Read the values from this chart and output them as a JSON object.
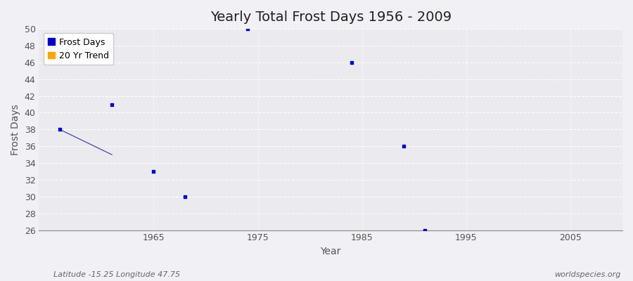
{
  "title": "Yearly Total Frost Days 1956 - 2009",
  "xlabel": "Year",
  "ylabel": "Frost Days",
  "frost_years": [
    1956,
    1961,
    1965,
    1968,
    1974,
    1984,
    1989,
    1991
  ],
  "frost_values": [
    38,
    41,
    33,
    30,
    50,
    46,
    36,
    26
  ],
  "trend_years": [
    1956,
    1961
  ],
  "trend_values": [
    38,
    35
  ],
  "xlim": [
    1954,
    2010
  ],
  "ylim": [
    26,
    50
  ],
  "yticks": [
    26,
    28,
    30,
    32,
    34,
    36,
    38,
    40,
    42,
    44,
    46,
    48,
    50
  ],
  "xticks": [
    1965,
    1975,
    1985,
    1995,
    2005
  ],
  "scatter_color": "#0000cc",
  "trend_color": "#3333aa",
  "trend_legend_color": "#ffa500",
  "bg_color": "#f0f0f5",
  "plot_bg_color": "#eaeaef",
  "grid_color": "#ffffff",
  "title_fontsize": 14,
  "axis_label_fontsize": 10,
  "tick_fontsize": 9,
  "legend_fontsize": 9,
  "subtitle_left": "Latitude -15.25 Longitude 47.75",
  "subtitle_right": "worldspecies.org",
  "subtitle_fontsize": 8
}
